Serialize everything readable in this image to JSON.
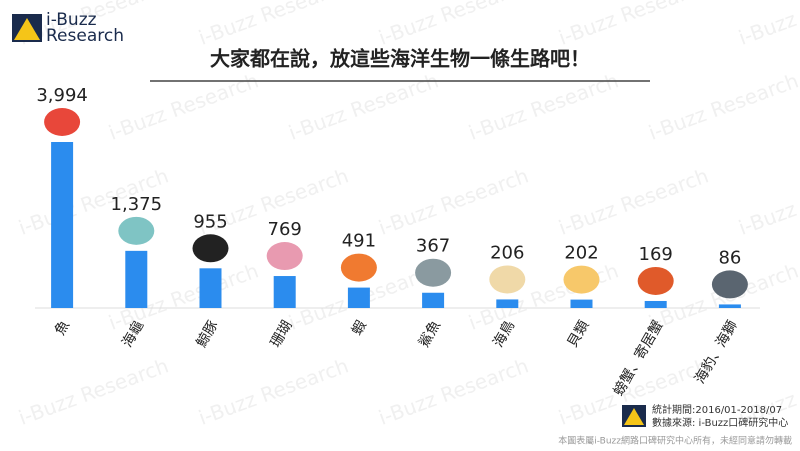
{
  "logo": {
    "line1": "i-Buzz",
    "line2": "Research"
  },
  "watermark": "i-Buzz Research",
  "chart_data": {
    "type": "bar",
    "title": "大家都在說，放這些海洋生物一條生路吧！",
    "categories": [
      "魚",
      "海龜",
      "鯨豚",
      "珊瑚",
      "蝦",
      "鯊魚",
      "海鳥",
      "貝類",
      "螃蟹、寄居蟹",
      "海豹、海獅"
    ],
    "values": [
      3994,
      1375,
      955,
      769,
      491,
      367,
      206,
      202,
      169,
      86
    ],
    "value_labels": [
      "3,994",
      "1,375",
      "955",
      "769",
      "491",
      "367",
      "206",
      "202",
      "169",
      "86"
    ],
    "color": "#2b8cee"
  },
  "footer": {
    "period": "統計期間:2016/01-2018/07",
    "source": "數據來源: i-Buzz口碑研究中心",
    "copyright": "本圖表屬i-Buzz網路口碑研究中心所有，未經同意請勿轉載"
  }
}
